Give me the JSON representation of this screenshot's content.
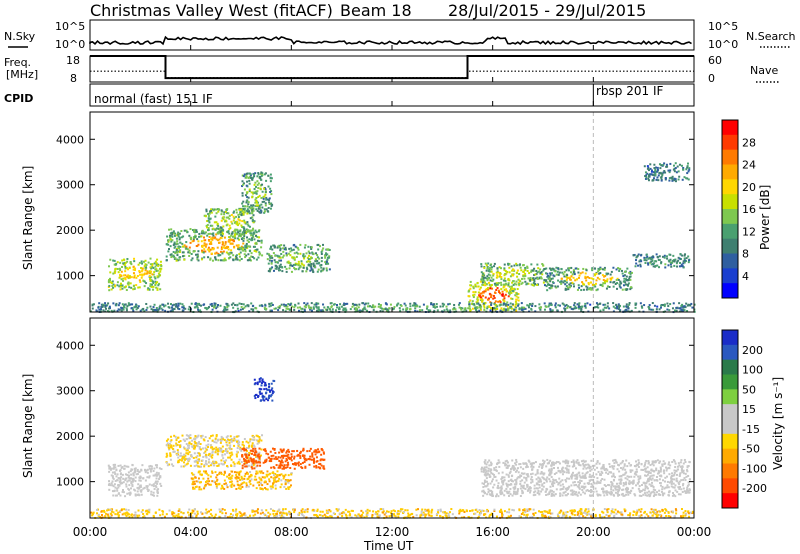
{
  "header": {
    "station": "Christmas Valley West (fitACF)",
    "beam": "Beam 18",
    "dates": "28/Jul/2015 - 29/Jul/2015"
  },
  "nsky_panel": {
    "label": "N.Sky",
    "right_label": "N.Search",
    "ticks_left": [
      "10^5",
      "10^0"
    ],
    "ticks_right": [
      "10^5",
      "10^0"
    ]
  },
  "freq_panel": {
    "label_line1": "Freq.",
    "label_line2": "[MHz]",
    "ticks_left": [
      "18",
      "8"
    ],
    "ticks_right": [
      "60",
      "0"
    ],
    "right_label": "Nave"
  },
  "cpid_panel": {
    "label": "CPID",
    "program1": "normal (fast) 151 IF",
    "program2": "rbsp 201 IF",
    "switch_hour": 20
  },
  "power_panel": {
    "ylabel": "Slant Range [km]",
    "yticks": [
      "4000",
      "3000",
      "2000",
      "1000"
    ],
    "colorbar_label": "Power [dB]",
    "colorbar_ticks": [
      "28",
      "24",
      "20",
      "16",
      "12",
      "8",
      "4"
    ],
    "colorbar_colors": [
      "#ff0000",
      "#ff3a00",
      "#ff7a00",
      "#ffaa00",
      "#ffd700",
      "#c8e000",
      "#7ec850",
      "#4aa070",
      "#3f7f70",
      "#2f5fa0",
      "#1a3fd0",
      "#0000ff"
    ]
  },
  "velocity_panel": {
    "ylabel": "Slant Range [km]",
    "yticks": [
      "4000",
      "3000",
      "2000",
      "1000"
    ],
    "colorbar_label": "Velocity [m s⁻¹]",
    "colorbar_ticks": [
      "200",
      "100",
      "50",
      "15",
      "-15",
      "-50",
      "-100",
      "-200"
    ],
    "colorbar_colors": [
      "#1a2cc8",
      "#2a58c0",
      "#2a7a4a",
      "#3a9a3a",
      "#7ed040",
      "#c8c8c8",
      "#c8c8c8",
      "#ffd700",
      "#ffaa00",
      "#ff7a00",
      "#ff4a00",
      "#ff0000"
    ]
  },
  "xaxis": {
    "label": "Time UT",
    "ticks": [
      "00:00",
      "04:00",
      "08:00",
      "12:00",
      "16:00",
      "20:00",
      "00:00"
    ]
  },
  "chart_data": {
    "type": "heatmap",
    "title": "Christmas Valley West (fitACF)",
    "subtitle": "Beam 18  28/Jul/2015 - 29/Jul/2015",
    "xlabel": "Time UT",
    "ylabel": "Slant Range [km]",
    "xlim": [
      0,
      24
    ],
    "ylim": [
      200,
      4600
    ],
    "power_scatter": [
      {
        "t0": 0.7,
        "t1": 2.8,
        "r0": 700,
        "r1": 1400,
        "v": 14,
        "core": 20
      },
      {
        "t0": 3.0,
        "t1": 6.8,
        "r0": 1350,
        "r1": 2050,
        "v": 12,
        "core": 22
      },
      {
        "t0": 4.5,
        "t1": 6.5,
        "r0": 1900,
        "r1": 2500,
        "v": 12,
        "core": 16
      },
      {
        "t0": 6.0,
        "t1": 7.2,
        "r0": 2400,
        "r1": 3300,
        "v": 10,
        "core": 14
      },
      {
        "t0": 7.0,
        "t1": 9.5,
        "r0": 1100,
        "r1": 1700,
        "v": 10,
        "core": 14
      },
      {
        "t0": 15.0,
        "t1": 17.0,
        "r0": 250,
        "r1": 900,
        "v": 16,
        "core": 26
      },
      {
        "t0": 15.5,
        "t1": 18.0,
        "r0": 800,
        "r1": 1300,
        "v": 12,
        "core": 16
      },
      {
        "t0": 18.0,
        "t1": 21.5,
        "r0": 700,
        "r1": 1200,
        "v": 10,
        "core": 20
      },
      {
        "t0": 21.5,
        "t1": 23.8,
        "r0": 1200,
        "r1": 1500,
        "v": 8,
        "core": 10
      },
      {
        "t0": 22.0,
        "t1": 23.8,
        "r0": 3100,
        "r1": 3500,
        "v": 8,
        "core": 8
      },
      {
        "t0": 0.0,
        "t1": 24.0,
        "r0": 220,
        "r1": 420,
        "v": 8,
        "core": 12
      }
    ],
    "velocity_scatter": [
      {
        "t0": 0.7,
        "t1": 2.8,
        "r0": 700,
        "r1": 1400,
        "v": 0
      },
      {
        "t0": 3.0,
        "t1": 6.8,
        "r0": 1350,
        "r1": 2050,
        "v": -15
      },
      {
        "t0": 6.5,
        "t1": 7.3,
        "r0": 2800,
        "r1": 3300,
        "v": 150
      },
      {
        "t0": 6.0,
        "t1": 9.3,
        "r0": 1300,
        "r1": 1750,
        "v": -150
      },
      {
        "t0": 4.0,
        "t1": 8.0,
        "r0": 850,
        "r1": 1250,
        "v": -40
      },
      {
        "t0": 15.5,
        "t1": 23.8,
        "r0": 700,
        "r1": 1500,
        "v": 0
      },
      {
        "t0": 0.0,
        "t1": 24.0,
        "r0": 220,
        "r1": 420,
        "v": -30
      }
    ],
    "frequency_mhz": [
      {
        "t0": 0,
        "t1": 3,
        "v": 18
      },
      {
        "t0": 3,
        "t1": 15,
        "v": 9.5
      },
      {
        "t0": 15,
        "t1": 24,
        "v": 18
      }
    ],
    "nave": [
      {
        "t0": 0,
        "t1": 3,
        "v": 25
      },
      {
        "t0": 3,
        "t1": 15,
        "v": 10
      },
      {
        "t0": 15,
        "t1": 24,
        "v": 25
      }
    ]
  }
}
